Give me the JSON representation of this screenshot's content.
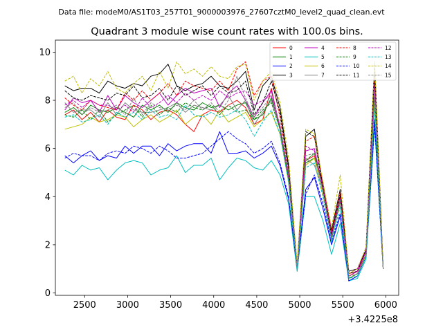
{
  "suptitle": "Data file: modeM0/AS1T03_257T01_9000003976_27607cztM0_level2_quad_clean.evt",
  "chart_data": {
    "type": "line",
    "title": "Quadrant 3 module wise count rates with 100.0s bins.",
    "xlabel": "",
    "ylabel": "",
    "x_offset_label": "+3.4225e8",
    "xlim": [
      2160,
      6150
    ],
    "ylim": [
      -0.1,
      10.5
    ],
    "xticks": [
      2500,
      3000,
      3500,
      4000,
      4500,
      5000,
      5500,
      6000
    ],
    "yticks": [
      0,
      2,
      4,
      6,
      8,
      10
    ],
    "legend_position": "upper right",
    "x": [
      2270,
      2370,
      2470,
      2570,
      2670,
      2770,
      2870,
      2970,
      3070,
      3170,
      3270,
      3370,
      3470,
      3570,
      3670,
      3770,
      3870,
      3970,
      4070,
      4170,
      4270,
      4370,
      4470,
      4570,
      4670,
      4770,
      4870,
      4970,
      5070,
      5170,
      5270,
      5370,
      5470,
      5570,
      5670,
      5770,
      5870,
      5970
    ],
    "series": [
      {
        "name": "0",
        "color": "#ff0000",
        "dash": "solid",
        "values": [
          7.4,
          7.6,
          7.2,
          7.5,
          7.1,
          7.6,
          7.3,
          7.2,
          7.8,
          7.6,
          7.2,
          7.5,
          7.6,
          7.4,
          7.0,
          6.7,
          7.4,
          7.6,
          7.5,
          7.8,
          8.0,
          7.7,
          7.0,
          7.2,
          8.5,
          6.8,
          4.8,
          1.1,
          5.5,
          5.7,
          4.4,
          2.3,
          3.8,
          0.7,
          0.9,
          1.6,
          8.5,
          1.0
        ]
      },
      {
        "name": "1",
        "color": "#008000",
        "dash": "solid",
        "values": [
          7.5,
          7.7,
          7.4,
          7.8,
          7.6,
          7.5,
          7.7,
          7.5,
          7.3,
          7.8,
          7.6,
          7.8,
          7.5,
          7.9,
          7.7,
          7.6,
          7.9,
          7.7,
          7.8,
          7.6,
          7.8,
          7.9,
          7.2,
          7.4,
          8.1,
          6.8,
          4.9,
          1.0,
          5.4,
          5.6,
          4.6,
          2.4,
          3.9,
          0.6,
          0.8,
          1.6,
          8.3,
          1.0
        ]
      },
      {
        "name": "2",
        "color": "#0000ff",
        "dash": "solid",
        "values": [
          5.7,
          5.4,
          5.7,
          5.9,
          5.5,
          5.7,
          5.6,
          6.1,
          5.8,
          6.1,
          6.1,
          5.7,
          6.2,
          5.9,
          6.1,
          6.2,
          6.2,
          5.8,
          6.7,
          5.8,
          5.8,
          5.9,
          5.6,
          5.8,
          6.1,
          5.3,
          3.9,
          1.0,
          4.3,
          4.8,
          3.5,
          2.0,
          3.2,
          0.5,
          0.7,
          1.5,
          7.2,
          1.0
        ]
      },
      {
        "name": "3",
        "color": "#000000",
        "dash": "solid",
        "values": [
          8.6,
          8.4,
          8.5,
          8.5,
          8.3,
          8.8,
          8.6,
          8.5,
          8.7,
          8.6,
          9.0,
          9.1,
          9.5,
          8.6,
          8.4,
          8.6,
          8.7,
          9.0,
          8.6,
          8.5,
          8.8,
          9.2,
          7.6,
          8.6,
          9.0,
          7.7,
          5.3,
          1.1,
          6.5,
          6.8,
          4.4,
          2.6,
          4.3,
          0.9,
          1.0,
          1.8,
          9.6,
          1.0
        ]
      },
      {
        "name": "4",
        "color": "#bf00bf",
        "dash": "solid",
        "values": [
          7.6,
          8.1,
          7.9,
          8.0,
          7.5,
          8.2,
          7.6,
          8.2,
          7.9,
          7.7,
          8.0,
          8.3,
          7.8,
          8.2,
          8.5,
          8.3,
          8.4,
          8.5,
          7.7,
          8.3,
          8.6,
          8.0,
          7.3,
          7.9,
          8.4,
          6.9,
          4.9,
          1.1,
          5.9,
          6.0,
          4.3,
          2.5,
          4.0,
          0.8,
          1.0,
          1.7,
          8.8,
          1.0
        ]
      },
      {
        "name": "5",
        "color": "#00bfbf",
        "dash": "solid",
        "values": [
          5.1,
          4.9,
          5.3,
          5.1,
          5.2,
          4.7,
          5.1,
          5.4,
          5.5,
          5.4,
          4.9,
          5.1,
          5.2,
          5.7,
          5.0,
          5.3,
          5.3,
          5.6,
          4.7,
          5.2,
          5.6,
          5.5,
          5.2,
          5.1,
          5.5,
          4.9,
          3.7,
          0.9,
          4.0,
          4.0,
          3.0,
          1.6,
          2.9,
          0.5,
          0.6,
          1.4,
          6.9,
          1.0
        ]
      },
      {
        "name": "6",
        "color": "#bfbf00",
        "dash": "solid",
        "values": [
          6.8,
          6.9,
          7.0,
          7.3,
          7.1,
          7.2,
          7.4,
          7.3,
          6.9,
          7.2,
          7.4,
          7.1,
          7.3,
          7.6,
          7.0,
          7.3,
          7.4,
          7.0,
          7.6,
          7.1,
          7.3,
          7.5,
          6.9,
          7.2,
          7.5,
          6.6,
          4.6,
          1.0,
          5.3,
          5.6,
          4.1,
          2.3,
          3.8,
          0.6,
          0.8,
          1.5,
          8.0,
          1.0
        ]
      },
      {
        "name": "7",
        "color": "#808080",
        "dash": "solid",
        "values": [
          7.9,
          7.5,
          7.6,
          7.6,
          7.3,
          7.9,
          7.4,
          7.9,
          7.6,
          7.5,
          7.5,
          7.6,
          7.7,
          7.9,
          7.5,
          7.8,
          7.7,
          7.6,
          7.8,
          8.2,
          7.6,
          8.0,
          7.0,
          7.5,
          8.0,
          6.9,
          4.8,
          1.0,
          5.6,
          5.3,
          4.3,
          2.2,
          3.9,
          0.6,
          0.8,
          1.6,
          8.5,
          1.0
        ]
      },
      {
        "name": "8",
        "color": "#ff0000",
        "dash": "dashed",
        "values": [
          8.1,
          7.8,
          7.6,
          8.0,
          7.8,
          7.7,
          7.6,
          8.3,
          8.0,
          8.4,
          8.0,
          8.3,
          8.7,
          8.2,
          8.8,
          8.6,
          8.5,
          8.4,
          8.8,
          8.4,
          9.3,
          9.6,
          8.2,
          8.8,
          9.0,
          7.3,
          5.1,
          1.1,
          6.3,
          6.5,
          4.5,
          2.5,
          4.2,
          0.8,
          0.9,
          1.8,
          9.2,
          1.0
        ]
      },
      {
        "name": "9",
        "color": "#008000",
        "dash": "dashed",
        "values": [
          7.4,
          7.3,
          7.6,
          7.2,
          7.6,
          7.1,
          7.4,
          7.6,
          7.8,
          7.3,
          7.8,
          7.4,
          7.7,
          7.5,
          7.9,
          7.7,
          7.6,
          7.8,
          7.4,
          7.8,
          7.5,
          7.6,
          7.2,
          7.6,
          7.9,
          6.8,
          4.7,
          1.0,
          5.5,
          5.8,
          4.4,
          2.3,
          3.8,
          0.6,
          0.8,
          1.6,
          8.2,
          1.0
        ]
      },
      {
        "name": "10",
        "color": "#0000ff",
        "dash": "dashed",
        "values": [
          5.6,
          5.8,
          5.7,
          5.7,
          5.5,
          5.8,
          5.9,
          5.8,
          6.1,
          6.0,
          5.8,
          6.1,
          5.9,
          5.6,
          5.6,
          5.7,
          5.8,
          6.1,
          6.4,
          6.7,
          6.4,
          6.2,
          5.8,
          6.0,
          6.3,
          5.4,
          4.0,
          1.0,
          4.1,
          4.9,
          3.7,
          2.1,
          3.3,
          0.5,
          0.7,
          1.5,
          7.0,
          1.0
        ]
      },
      {
        "name": "11",
        "color": "#000000",
        "dash": "dashed",
        "values": [
          8.4,
          8.1,
          8.0,
          8.2,
          8.1,
          8.0,
          8.3,
          8.2,
          8.6,
          8.1,
          8.2,
          8.5,
          8.0,
          8.6,
          8.2,
          8.4,
          8.6,
          8.2,
          8.6,
          8.3,
          8.4,
          8.8,
          7.4,
          7.9,
          8.8,
          7.5,
          5.2,
          1.1,
          6.7,
          6.5,
          4.3,
          2.4,
          4.1,
          0.8,
          0.9,
          1.8,
          9.3,
          1.0
        ]
      },
      {
        "name": "12",
        "color": "#bf00bf",
        "dash": "dashed",
        "values": [
          7.8,
          8.0,
          7.7,
          8.0,
          7.8,
          7.8,
          7.6,
          7.8,
          7.5,
          8.1,
          7.7,
          7.9,
          8.2,
          7.9,
          8.3,
          8.0,
          8.2,
          8.0,
          8.4,
          8.1,
          8.3,
          8.4,
          7.8,
          8.0,
          8.2,
          6.9,
          4.8,
          1.0,
          6.1,
          5.9,
          4.4,
          2.4,
          3.9,
          0.7,
          0.9,
          1.7,
          8.6,
          1.0
        ]
      },
      {
        "name": "13",
        "color": "#00bfbf",
        "dash": "dashed",
        "values": [
          7.3,
          7.4,
          7.1,
          7.2,
          7.4,
          7.0,
          7.5,
          7.3,
          7.5,
          7.2,
          7.6,
          7.3,
          7.4,
          7.2,
          7.8,
          7.4,
          7.3,
          7.5,
          7.3,
          7.4,
          7.6,
          7.2,
          6.5,
          7.1,
          7.6,
          6.6,
          4.6,
          0.9,
          5.2,
          5.4,
          4.0,
          2.1,
          3.6,
          0.6,
          0.7,
          1.5,
          7.7,
          1.0
        ]
      },
      {
        "name": "14",
        "color": "#bfbf00",
        "dash": "dashed",
        "values": [
          8.8,
          9.0,
          8.3,
          8.9,
          8.6,
          9.2,
          8.5,
          8.3,
          8.7,
          9.0,
          8.4,
          9.2,
          8.5,
          9.6,
          9.1,
          9.3,
          9.0,
          9.4,
          9.0,
          8.9,
          9.4,
          9.5,
          8.0,
          8.8,
          9.2,
          7.9,
          5.6,
          1.2,
          6.8,
          6.6,
          4.6,
          2.7,
          4.9,
          0.8,
          1.0,
          1.9,
          9.6,
          1.0
        ]
      },
      {
        "name": "15",
        "color": "#808080",
        "dash": "dashed",
        "values": [
          7.7,
          7.9,
          7.4,
          7.7,
          7.5,
          7.6,
          7.8,
          7.4,
          8.1,
          7.4,
          7.9,
          7.7,
          7.6,
          7.8,
          7.6,
          8.0,
          7.6,
          7.9,
          7.5,
          8.0,
          9.0,
          8.1,
          7.3,
          7.7,
          8.2,
          7.0,
          5.0,
          1.0,
          5.7,
          5.8,
          4.2,
          2.3,
          3.9,
          0.7,
          0.8,
          1.6,
          8.4,
          1.0
        ]
      }
    ]
  }
}
